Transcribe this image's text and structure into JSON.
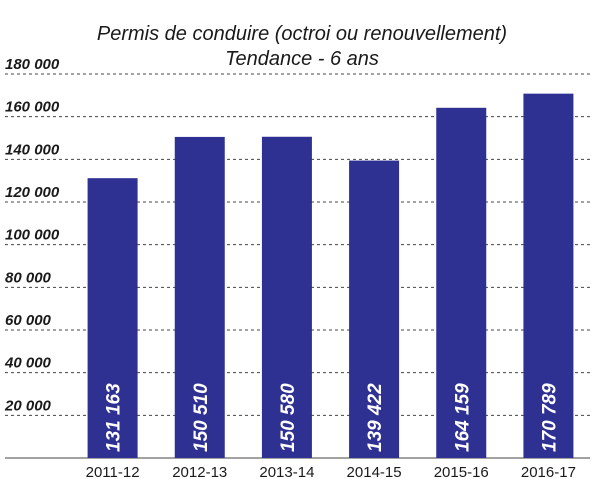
{
  "chart_data": {
    "type": "bar",
    "title": "Permis de conduire (octroi ou renouvellement)",
    "subtitle": "Tendance - 6 ans",
    "categories": [
      "2011-12",
      "2012-13",
      "2013-14",
      "2014-15",
      "2015-16",
      "2016-17"
    ],
    "values": [
      131163,
      150510,
      150580,
      139422,
      164159,
      170789
    ],
    "value_labels": [
      "131 163",
      "150 510",
      "150 580",
      "139 422",
      "164 159",
      "170 789"
    ],
    "color": "#2e3192",
    "ylim": [
      0,
      180000
    ],
    "yticks": [
      {
        "value": 20000,
        "label": "20 000"
      },
      {
        "value": 40000,
        "label": "40 000"
      },
      {
        "value": 60000,
        "label": "60 000"
      },
      {
        "value": 80000,
        "label": "80 000"
      },
      {
        "value": 100000,
        "label": "100 000"
      },
      {
        "value": 120000,
        "label": "120 000"
      },
      {
        "value": 140000,
        "label": "140 000"
      },
      {
        "value": 160000,
        "label": "160 000"
      },
      {
        "value": 180000,
        "label": "180 000"
      }
    ],
    "grid": true
  }
}
